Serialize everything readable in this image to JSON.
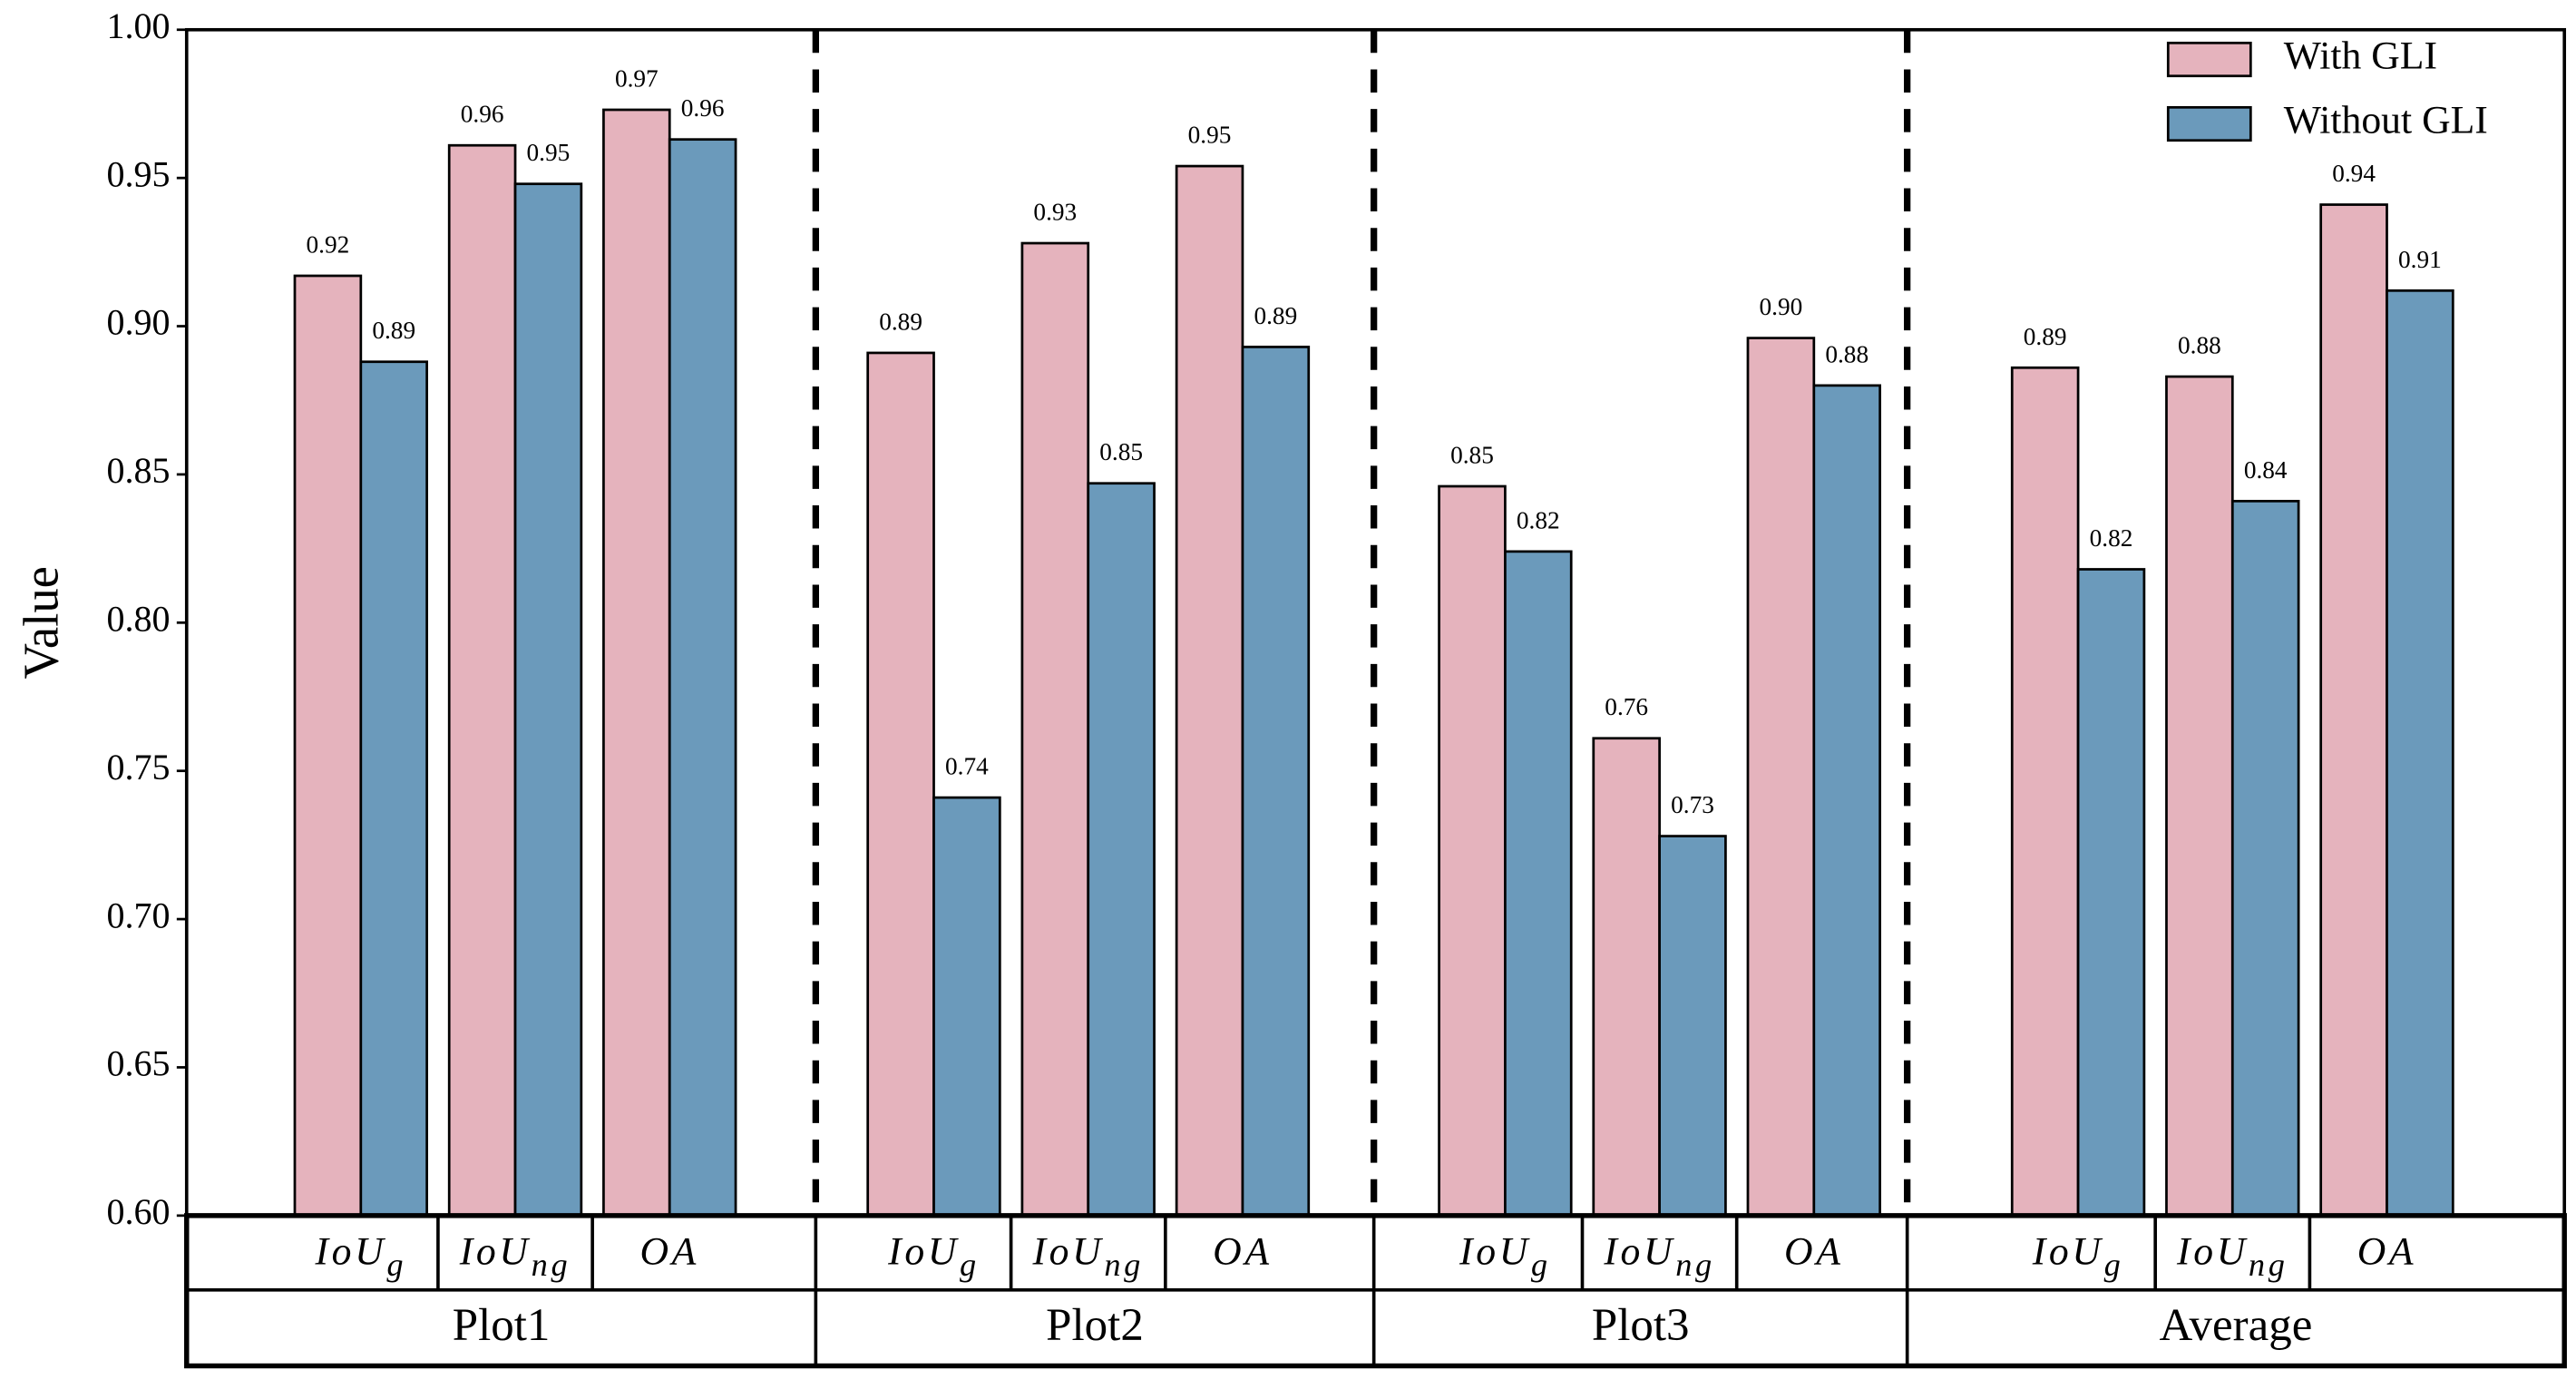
{
  "chart_data": {
    "type": "grouped_bar",
    "y_label": "Value",
    "groups": [
      "Plot1",
      "Plot2",
      "Plot3",
      "Average"
    ],
    "metrics": [
      {
        "text": "IoU",
        "sub": "g"
      },
      {
        "text": "IoU",
        "sub": "ng"
      },
      {
        "text": "OA"
      }
    ],
    "series": [
      {
        "name": "With GLI",
        "color": "#e5b3bd",
        "values": [
          [
            0.917,
            0.961,
            0.973
          ],
          [
            0.891,
            0.928,
            0.954
          ],
          [
            0.846,
            0.761,
            0.896
          ],
          [
            0.886,
            0.883,
            0.941
          ]
        ],
        "value_labels": [
          [
            "0.92",
            "0.96",
            "0.97"
          ],
          [
            "0.89",
            "0.93",
            "0.95"
          ],
          [
            "0.85",
            "0.76",
            "0.90"
          ],
          [
            "0.89",
            "0.88",
            "0.94"
          ]
        ]
      },
      {
        "name": "Without GLI",
        "color": "#6b9abb",
        "values": [
          [
            0.888,
            0.948,
            0.963
          ],
          [
            0.741,
            0.847,
            0.893
          ],
          [
            0.824,
            0.728,
            0.88
          ],
          [
            0.818,
            0.841,
            0.912
          ]
        ],
        "value_labels": [
          [
            "0.89",
            "0.95",
            "0.96"
          ],
          [
            "0.74",
            "0.85",
            "0.89"
          ],
          [
            "0.82",
            "0.73",
            "0.88"
          ],
          [
            "0.82",
            "0.84",
            "0.91"
          ]
        ]
      }
    ],
    "ylim": [
      0.6,
      1.0
    ],
    "yticks": [
      {
        "value": 0.6,
        "label": "0.60"
      },
      {
        "value": 0.65,
        "label": "0.65"
      },
      {
        "value": 0.7,
        "label": "0.70"
      },
      {
        "value": 0.75,
        "label": "0.75"
      },
      {
        "value": 0.8,
        "label": "0.80"
      },
      {
        "value": 0.85,
        "label": "0.85"
      },
      {
        "value": 0.9,
        "label": "0.90"
      },
      {
        "value": 0.95,
        "label": "0.95"
      },
      {
        "value": 1.0,
        "label": "1.00"
      }
    ],
    "legend": "upper right"
  }
}
